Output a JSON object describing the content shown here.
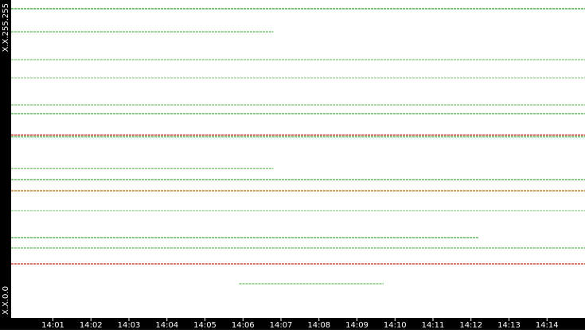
{
  "chart_data": {
    "type": "segments",
    "xlim": [
      839.9,
      855.0
    ],
    "xticks": [
      {
        "value": 841,
        "label": "14:01"
      },
      {
        "value": 842,
        "label": "14:02"
      },
      {
        "value": 843,
        "label": "14:03"
      },
      {
        "value": 844,
        "label": "14:04"
      },
      {
        "value": 845,
        "label": "14:05"
      },
      {
        "value": 846,
        "label": "14:06"
      },
      {
        "value": 847,
        "label": "14:07"
      },
      {
        "value": 848,
        "label": "14:08"
      },
      {
        "value": 849,
        "label": "14:09"
      },
      {
        "value": 850,
        "label": "14:10"
      },
      {
        "value": 851,
        "label": "14:11"
      },
      {
        "value": 852,
        "label": "14:12"
      },
      {
        "value": 853,
        "label": "14:13"
      },
      {
        "value": 854,
        "label": "14:14"
      }
    ],
    "ylim": [
      0,
      65535
    ],
    "yticks": [
      {
        "value": 0,
        "label": "X.X.0.0"
      },
      {
        "value": 65535,
        "label": "X.X.255.255"
      }
    ],
    "lines": [
      {
        "y": 63737,
        "x": [
          839.9,
          855.0
        ],
        "color": "#5fb85a"
      },
      {
        "y": 58982,
        "x": [
          839.9,
          846.8
        ],
        "color": "#7cc676"
      },
      {
        "y": 53247,
        "x": [
          839.9,
          855.0
        ],
        "color": "#8fce89"
      },
      {
        "y": 49479,
        "x": [
          839.9,
          855.0
        ],
        "color": "#a6d8a1"
      },
      {
        "y": 43909,
        "x": [
          839.9,
          855.0
        ],
        "color": "#8fce89"
      },
      {
        "y": 42106,
        "x": [
          839.9,
          855.0
        ],
        "color": "#5fb85a"
      },
      {
        "y": 37683,
        "x": [
          839.9,
          855.0
        ],
        "color": "#d04a3a"
      },
      {
        "y": 37355,
        "x": [
          839.9,
          855.0
        ],
        "color": "#5fb85a"
      },
      {
        "y": 30802,
        "x": [
          839.9,
          846.8
        ],
        "color": "#7cc676"
      },
      {
        "y": 28508,
        "x": [
          839.9,
          855.0
        ],
        "color": "#5fb85a"
      },
      {
        "y": 26214,
        "x": [
          839.9,
          855.0
        ],
        "color": "#c8802f"
      },
      {
        "y": 22118,
        "x": [
          839.9,
          855.0
        ],
        "color": "#a6d8a1"
      },
      {
        "y": 16548,
        "x": [
          839.9,
          852.2
        ],
        "color": "#5fb85a"
      },
      {
        "y": 14418,
        "x": [
          839.9,
          855.0
        ],
        "color": "#7cc676"
      },
      {
        "y": 11141,
        "x": [
          839.9,
          855.0
        ],
        "color": "#d04a3a"
      },
      {
        "y": 7045,
        "x": [
          845.9,
          849.7
        ],
        "color": "#7cc676"
      }
    ]
  }
}
